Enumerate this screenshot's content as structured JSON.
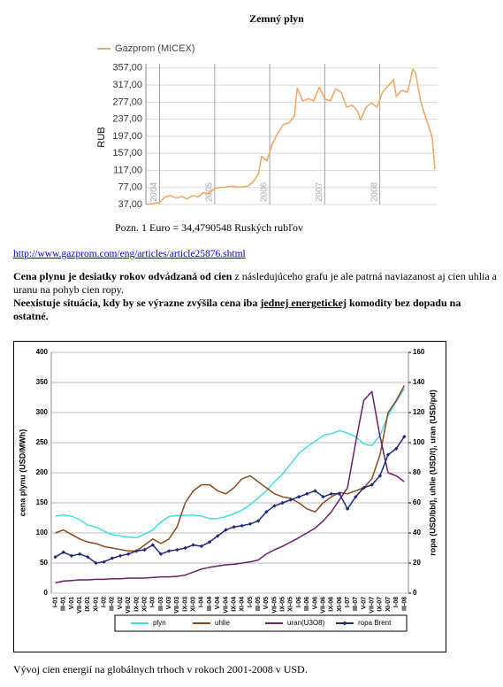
{
  "title": "Zemný plyn",
  "note": "Pozn. 1 Euro = 34,4790548 Ruských rubľov",
  "link": "http://www.gazprom.com/eng/articles/article25876.shtml",
  "paragraph1": {
    "bold": "Cena plynu je  desiatky rokov odvádzaná od cien",
    "normal": "z následujúceho grafu je ale patrná naviazanost aj cien uhlia a uranu na pohyb cien ropy."
  },
  "paragraph2": {
    "before": "Neexistuje situácia, kdy by se výrazne zvýšila cena iba",
    "underlined": "jednej  energetickej",
    "after": "komodity bez dopadu na ostatné."
  },
  "caption": "Vývoj cien energií na globálnych trhoch v rokoch 2001-2008 v USD.",
  "chart_data": [
    {
      "type": "line",
      "ylabel": "RUB",
      "legend": "top",
      "grid": true,
      "x": [
        2003.75,
        2003.9,
        2004.0,
        2004.1,
        2004.2,
        2004.3,
        2004.4,
        2004.5,
        2004.6,
        2004.7,
        2004.8,
        2004.9,
        2005.0,
        2005.1,
        2005.2,
        2005.3,
        2005.4,
        2005.5,
        2005.6,
        2005.7,
        2005.8,
        2005.85,
        2005.95,
        2006.05,
        2006.15,
        2006.25,
        2006.35,
        2006.45,
        2006.5,
        2006.6,
        2006.7,
        2006.8,
        2006.9,
        2007.0,
        2007.1,
        2007.2,
        2007.3,
        2007.4,
        2007.5,
        2007.6,
        2007.65,
        2007.75,
        2007.85,
        2007.95,
        2008.05,
        2008.15,
        2008.25,
        2008.3,
        2008.4,
        2008.5,
        2008.55,
        2008.6,
        2008.65,
        2008.75,
        2008.85,
        2008.95,
        2009.0
      ],
      "series": [
        {
          "name": "Gazprom (MICEX)",
          "color": "#f5a35e",
          "values": [
            37,
            40,
            42,
            55,
            58,
            52,
            56,
            50,
            58,
            55,
            65,
            62,
            75,
            77,
            78,
            80,
            78,
            78,
            80,
            90,
            110,
            150,
            140,
            180,
            205,
            225,
            228,
            245,
            310,
            280,
            285,
            280,
            312,
            285,
            280,
            308,
            300,
            265,
            270,
            255,
            235,
            265,
            275,
            265,
            300,
            315,
            330,
            290,
            305,
            300,
            325,
            355,
            345,
            275,
            235,
            195,
            120
          ]
        }
      ],
      "xlim": [
        2003.75,
        2009.05
      ],
      "xticks": [
        2004,
        2005,
        2006,
        2007,
        2008
      ],
      "ylim": [
        37,
        367
      ],
      "yticks": [
        {
          "value": 37,
          "label": "37,00"
        },
        {
          "value": 77,
          "label": "77,00"
        },
        {
          "value": 117,
          "label": "117,00"
        },
        {
          "value": 157,
          "label": "157,00"
        },
        {
          "value": 197,
          "label": "197,00"
        },
        {
          "value": 237,
          "label": "237,00"
        },
        {
          "value": 277,
          "label": "277,00"
        },
        {
          "value": 317,
          "label": "317,00"
        },
        {
          "value": 357,
          "label": "357,00"
        }
      ]
    },
    {
      "type": "line",
      "ylabel": "cena plynu (USD/MWh)",
      "y2label": "ropa (USD/bbl), uhlie (USD/t), uran (USD/pd)",
      "legend": "bottom",
      "grid": true,
      "categories": [
        "I-01",
        "III-01",
        "V-01",
        "VII-01",
        "IX-01",
        "XI-01",
        "I-02",
        "III-02",
        "V-02",
        "VII-02",
        "IX-02",
        "XI-02",
        "I-03",
        "III-03",
        "V-03",
        "VII-03",
        "IX-03",
        "XI-03",
        "I-04",
        "III-04",
        "V-04",
        "VII-04",
        "IX-04",
        "XI-04",
        "I-05",
        "III-05",
        "V-05",
        "VII-05",
        "IX-05",
        "XI-05",
        "I-06",
        "III-06",
        "V-06",
        "VII-06",
        "IX-06",
        "XI-06",
        "I-07",
        "III-07",
        "V-07",
        "VII-07",
        "IX-07",
        "XI-07",
        "I-08",
        "III-08"
      ],
      "ylim": [
        0,
        400
      ],
      "yticks": [
        0,
        50,
        100,
        150,
        200,
        250,
        300,
        350,
        400
      ],
      "y2lim": [
        0,
        160
      ],
      "y2ticks": [
        0,
        20,
        40,
        60,
        80,
        100,
        120,
        140,
        160
      ],
      "series": [
        {
          "name": "plyn",
          "color": "#3ee0e0",
          "values": [
            128,
            130,
            128,
            122,
            113,
            110,
            103,
            97,
            95,
            93,
            92,
            98,
            105,
            118,
            127,
            129,
            129,
            130,
            128,
            124,
            124,
            127,
            132,
            138,
            147,
            158,
            170,
            185,
            198,
            215,
            232,
            243,
            252,
            262,
            265,
            270,
            266,
            260,
            248,
            245,
            262,
            295,
            318,
            340
          ]
        },
        {
          "name": "uhlie",
          "color": "#8b4a1c",
          "axis": "y2",
          "values": [
            40,
            42,
            39,
            36,
            34,
            33,
            31,
            30,
            29,
            28,
            28,
            32,
            36,
            33,
            36,
            44,
            60,
            68,
            72,
            72,
            68,
            66,
            70,
            76,
            78,
            74,
            70,
            66,
            64,
            63,
            60,
            56,
            54,
            60,
            64,
            67,
            66,
            68,
            70,
            76,
            92,
            120,
            128,
            138
          ]
        },
        {
          "name": "uran(U3O8)",
          "color": "#6b1e6b",
          "axis": "y2",
          "values": [
            6.8,
            8,
            8.4,
            8.8,
            8.8,
            9.2,
            9.2,
            9.6,
            9.6,
            10,
            10,
            10,
            10.4,
            10.8,
            10.8,
            11.2,
            12,
            14,
            16,
            17.2,
            18,
            18.8,
            19.2,
            20,
            20.8,
            22,
            26,
            28.8,
            31.2,
            34,
            36.8,
            40,
            43.2,
            48,
            54,
            62,
            70,
            100,
            128,
            134,
            104,
            80,
            78,
            74
          ]
        },
        {
          "name": "ropa Brent",
          "color": "#1f2a7a",
          "axis": "y2",
          "marker": "diamond",
          "values": [
            24,
            27.2,
            24.8,
            26,
            24,
            20,
            20.8,
            23.2,
            24.8,
            26,
            28,
            28.8,
            32,
            26,
            28,
            28.8,
            30,
            32,
            31.2,
            34,
            38,
            42,
            44,
            44.8,
            46,
            48,
            54,
            58,
            60,
            62,
            64,
            66,
            68,
            64,
            66,
            66,
            56,
            64,
            70,
            72,
            78,
            92,
            96,
            104
          ]
        }
      ]
    }
  ]
}
